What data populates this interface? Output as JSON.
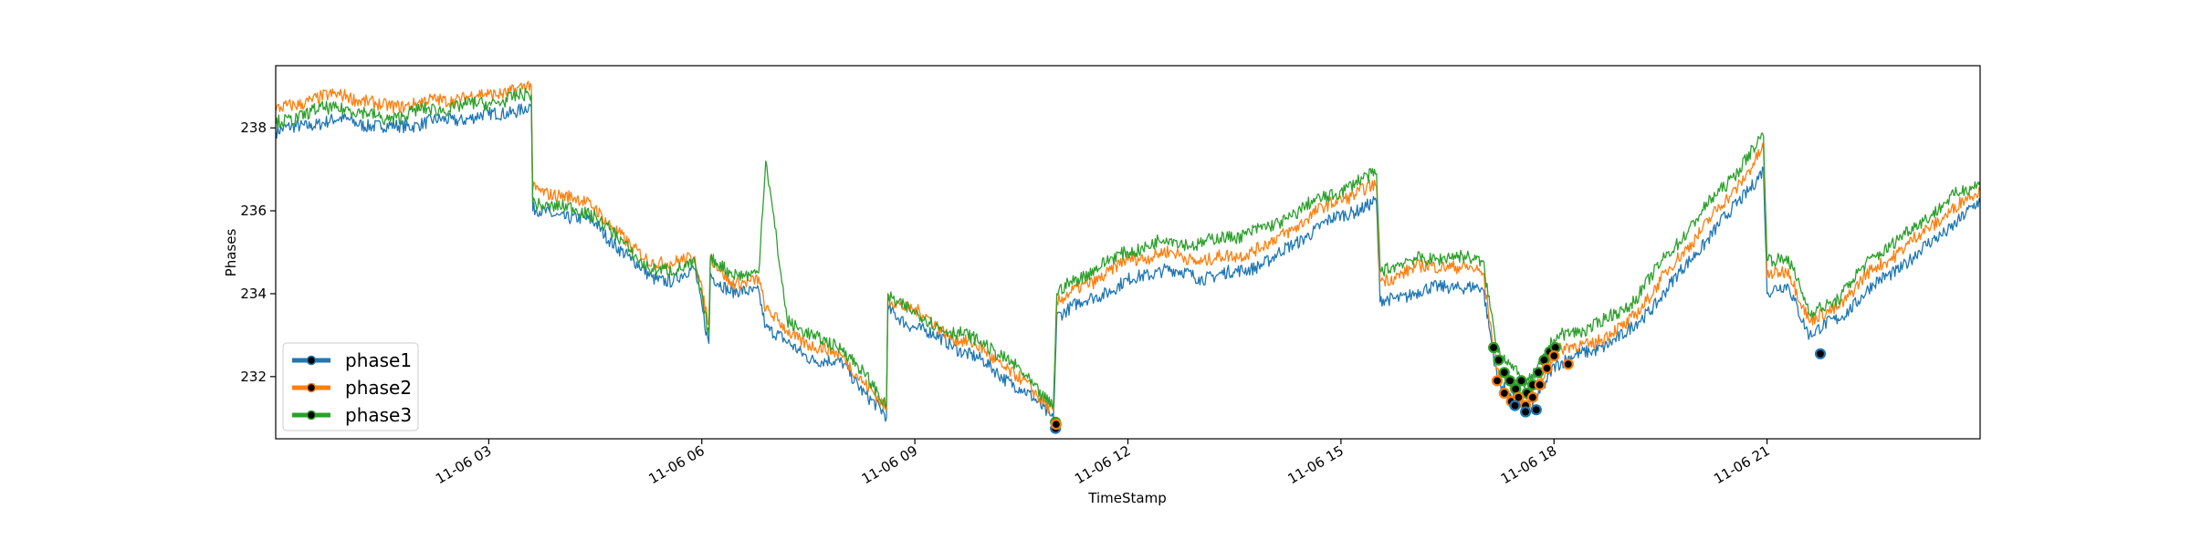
{
  "chart_data": {
    "type": "line",
    "title": "",
    "xlabel": "TimeStamp",
    "ylabel": "Phases",
    "x_range_hours": [
      0.0,
      24.0
    ],
    "ylim": [
      230.5,
      239.5
    ],
    "x_ticks": [
      {
        "hour": 3,
        "label": "11-06 03"
      },
      {
        "hour": 6,
        "label": "11-06 06"
      },
      {
        "hour": 9,
        "label": "11-06 09"
      },
      {
        "hour": 12,
        "label": "11-06 12"
      },
      {
        "hour": 15,
        "label": "11-06 15"
      },
      {
        "hour": 18,
        "label": "11-06 18"
      },
      {
        "hour": 21,
        "label": "11-06 21"
      }
    ],
    "y_ticks": [
      {
        "value": 232,
        "label": "232"
      },
      {
        "value": 234,
        "label": "234"
      },
      {
        "value": 236,
        "label": "236"
      },
      {
        "value": 238,
        "label": "238"
      }
    ],
    "grid": false,
    "legend": {
      "placement": "lower-left"
    },
    "series": [
      {
        "name": "phase1",
        "color": "#1f77b4",
        "x": [
          0.0,
          0.5,
          1.0,
          1.5,
          2.0,
          2.5,
          3.0,
          3.6,
          3.62,
          4.0,
          4.5,
          5.0,
          5.3,
          5.6,
          5.9,
          6.1,
          6.12,
          6.4,
          6.8,
          6.9,
          7.2,
          7.6,
          8.0,
          8.3,
          8.6,
          8.62,
          9.0,
          9.5,
          10.0,
          10.5,
          10.95,
          11.0,
          11.5,
          12.0,
          12.5,
          13.0,
          13.5,
          14.0,
          14.5,
          15.0,
          15.5,
          15.55,
          16.0,
          16.5,
          17.0,
          17.2,
          17.4,
          17.6,
          17.8,
          18.0,
          18.5,
          19.0,
          19.5,
          20.0,
          20.5,
          20.95,
          21.0,
          21.3,
          21.6,
          22.0,
          22.5,
          23.0,
          23.5,
          24.0
        ],
        "y": [
          237.9,
          238.1,
          238.2,
          238.0,
          238.1,
          238.2,
          238.3,
          238.5,
          236.0,
          235.9,
          235.7,
          234.8,
          234.4,
          234.3,
          234.6,
          232.8,
          234.5,
          234.0,
          234.1,
          233.2,
          232.8,
          232.4,
          232.3,
          231.6,
          231.0,
          233.6,
          233.2,
          232.8,
          232.3,
          231.7,
          231.0,
          233.5,
          233.9,
          234.3,
          234.6,
          234.4,
          234.5,
          234.8,
          235.4,
          235.9,
          236.2,
          233.8,
          234.0,
          234.2,
          234.1,
          232.0,
          231.5,
          231.2,
          231.6,
          232.3,
          232.6,
          233.0,
          233.9,
          235.0,
          236.0,
          237.0,
          234.0,
          234.2,
          233.0,
          233.4,
          234.2,
          234.8,
          235.5,
          236.2
        ]
      },
      {
        "name": "phase2",
        "color": "#ff7f0e",
        "x": [
          0.0,
          0.5,
          1.0,
          1.5,
          2.0,
          2.5,
          3.0,
          3.6,
          3.62,
          4.0,
          4.5,
          5.0,
          5.3,
          5.6,
          5.9,
          6.1,
          6.12,
          6.4,
          6.8,
          6.9,
          7.2,
          7.6,
          8.0,
          8.3,
          8.6,
          8.62,
          9.0,
          9.5,
          10.0,
          10.5,
          10.95,
          11.0,
          11.5,
          12.0,
          12.5,
          13.0,
          13.5,
          14.0,
          14.5,
          15.0,
          15.5,
          15.55,
          16.0,
          16.5,
          17.0,
          17.2,
          17.4,
          17.6,
          17.8,
          18.0,
          18.5,
          19.0,
          19.5,
          20.0,
          20.5,
          20.95,
          21.0,
          21.3,
          21.6,
          22.0,
          22.5,
          23.0,
          23.5,
          24.0
        ],
        "y": [
          238.4,
          238.7,
          238.8,
          238.5,
          238.6,
          238.7,
          238.8,
          239.0,
          236.5,
          236.4,
          236.1,
          235.1,
          234.8,
          234.7,
          234.9,
          233.3,
          234.9,
          234.2,
          234.4,
          233.6,
          233.1,
          232.7,
          232.5,
          231.8,
          231.2,
          233.9,
          233.6,
          233.0,
          232.6,
          231.9,
          231.2,
          233.8,
          234.3,
          234.8,
          235.0,
          234.8,
          234.9,
          235.2,
          235.8,
          236.3,
          236.6,
          234.3,
          234.6,
          234.7,
          234.5,
          232.2,
          231.8,
          231.5,
          231.9,
          232.6,
          232.8,
          233.2,
          234.3,
          235.4,
          236.4,
          237.5,
          234.4,
          234.6,
          233.3,
          233.7,
          234.6,
          235.2,
          235.9,
          236.5
        ]
      },
      {
        "name": "phase3",
        "color": "#2ca02c",
        "x": [
          0.0,
          0.5,
          1.0,
          1.5,
          2.0,
          2.5,
          3.0,
          3.6,
          3.62,
          4.0,
          4.5,
          5.0,
          5.3,
          5.6,
          5.9,
          6.1,
          6.12,
          6.4,
          6.8,
          6.9,
          7.2,
          7.6,
          8.0,
          8.3,
          8.6,
          8.62,
          9.0,
          9.5,
          10.0,
          10.5,
          10.95,
          11.0,
          11.5,
          12.0,
          12.5,
          13.0,
          13.5,
          14.0,
          14.5,
          15.0,
          15.5,
          15.55,
          16.0,
          16.5,
          17.0,
          17.2,
          17.4,
          17.6,
          17.8,
          18.0,
          18.5,
          19.0,
          19.5,
          20.0,
          20.5,
          20.95,
          21.0,
          21.3,
          21.6,
          22.0,
          22.5,
          23.0,
          23.5,
          24.0
        ],
        "y": [
          238.1,
          238.4,
          238.5,
          238.2,
          238.4,
          238.5,
          238.6,
          238.8,
          236.2,
          236.1,
          235.9,
          235.0,
          234.6,
          234.5,
          234.8,
          233.0,
          234.8,
          234.5,
          234.5,
          237.2,
          233.4,
          232.9,
          232.7,
          232.0,
          231.3,
          234.0,
          233.5,
          233.1,
          232.8,
          232.1,
          231.3,
          234.0,
          234.6,
          235.0,
          235.3,
          235.2,
          235.4,
          235.6,
          236.1,
          236.5,
          236.9,
          234.6,
          234.8,
          234.9,
          234.8,
          232.7,
          232.2,
          231.8,
          232.3,
          232.9,
          233.2,
          233.6,
          234.7,
          235.8,
          236.8,
          237.8,
          234.8,
          234.9,
          233.5,
          233.9,
          234.9,
          235.5,
          236.2,
          236.7
        ]
      }
    ],
    "event_markers": {
      "series": [
        "phase1",
        "phase2",
        "phase3"
      ],
      "points": [
        {
          "series": "phase1",
          "x": 10.98,
          "y": 230.75
        },
        {
          "series": "phase3",
          "x": 10.98,
          "y": 230.9
        },
        {
          "series": "phase2",
          "x": 10.99,
          "y": 230.85
        },
        {
          "series": "phase3",
          "x": 17.15,
          "y": 232.7
        },
        {
          "series": "phase3",
          "x": 17.22,
          "y": 232.4
        },
        {
          "series": "phase3",
          "x": 17.3,
          "y": 232.1
        },
        {
          "series": "phase3",
          "x": 17.38,
          "y": 231.9
        },
        {
          "series": "phase3",
          "x": 17.46,
          "y": 231.7
        },
        {
          "series": "phase3",
          "x": 17.54,
          "y": 231.9
        },
        {
          "series": "phase3",
          "x": 17.62,
          "y": 231.6
        },
        {
          "series": "phase3",
          "x": 17.7,
          "y": 231.8
        },
        {
          "series": "phase3",
          "x": 17.78,
          "y": 232.1
        },
        {
          "series": "phase3",
          "x": 17.86,
          "y": 232.4
        },
        {
          "series": "phase3",
          "x": 17.94,
          "y": 232.6
        },
        {
          "series": "phase3",
          "x": 18.02,
          "y": 232.7
        },
        {
          "series": "phase2",
          "x": 17.2,
          "y": 231.9
        },
        {
          "series": "phase2",
          "x": 17.3,
          "y": 231.6
        },
        {
          "series": "phase2",
          "x": 17.4,
          "y": 231.4
        },
        {
          "series": "phase2",
          "x": 17.5,
          "y": 231.5
        },
        {
          "series": "phase2",
          "x": 17.6,
          "y": 231.3
        },
        {
          "series": "phase2",
          "x": 17.7,
          "y": 231.5
        },
        {
          "series": "phase2",
          "x": 17.8,
          "y": 231.8
        },
        {
          "series": "phase2",
          "x": 17.9,
          "y": 232.2
        },
        {
          "series": "phase2",
          "x": 18.0,
          "y": 232.5
        },
        {
          "series": "phase1",
          "x": 17.45,
          "y": 231.3
        },
        {
          "series": "phase1",
          "x": 17.6,
          "y": 231.15
        },
        {
          "series": "phase1",
          "x": 17.75,
          "y": 231.2
        },
        {
          "series": "phase2",
          "x": 18.2,
          "y": 232.3
        },
        {
          "series": "phase1",
          "x": 21.75,
          "y": 232.55
        }
      ]
    }
  }
}
